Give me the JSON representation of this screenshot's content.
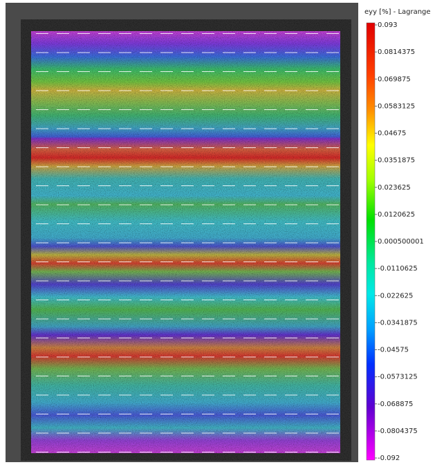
{
  "colorbar": {
    "title": "eyy [%] - Lagrange",
    "labels": [
      "0.093",
      "0.0814375",
      "0.069875",
      "0.0583125",
      "0.04675",
      "0.0351875",
      "0.023625",
      "0.0120625",
      "0.000500001",
      "-0.0110625",
      "-0.022625",
      "-0.0341875",
      "-0.04575",
      "-0.0573125",
      "-0.068875",
      "-0.0804375",
      "-0.092"
    ]
  }
}
